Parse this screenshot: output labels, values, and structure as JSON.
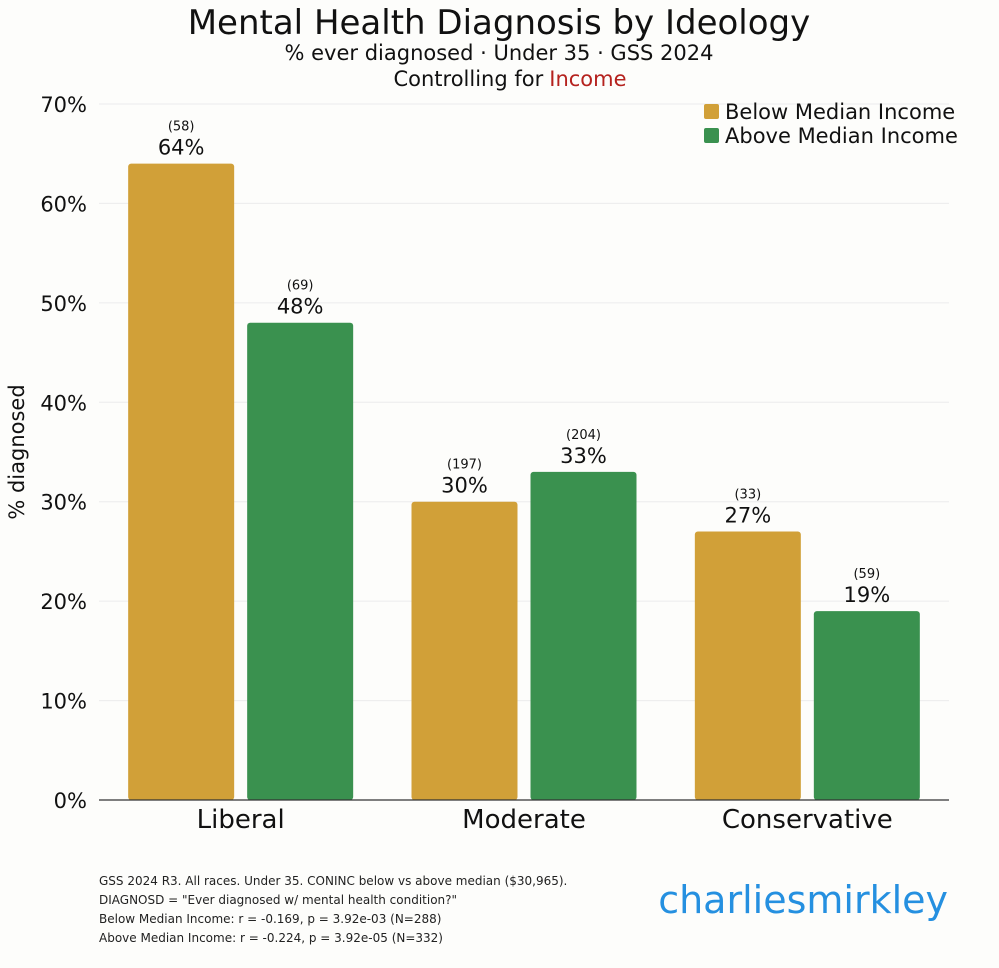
{
  "chart_data": {
    "type": "bar",
    "title": "Mental Health Diagnosis by Ideology",
    "subtitle": "% ever diagnosed · Under 35 · GSS 2024",
    "controlling_prefix": "Controlling for",
    "controlling_variable": "Income",
    "ylabel": "% diagnosed",
    "xlabel": "",
    "ylim": [
      0,
      70
    ],
    "yticks": [
      0,
      10,
      20,
      30,
      40,
      50,
      60,
      70
    ],
    "ytick_suffix": "%",
    "grid": true,
    "legend_position": "top-right",
    "categories": [
      "Liberal",
      "Moderate",
      "Conservative"
    ],
    "series": [
      {
        "name": "Below Median Income",
        "color": "#d1a038",
        "values": [
          64,
          30,
          27
        ],
        "value_labels": [
          "64%",
          "30%",
          "27%"
        ],
        "n_labels": [
          "(58)",
          "(197)",
          "(33)"
        ]
      },
      {
        "name": "Above Median Income",
        "color": "#3a914f",
        "values": [
          48,
          33,
          19
        ],
        "value_labels": [
          "48%",
          "33%",
          "19%"
        ],
        "n_labels": [
          "(69)",
          "(204)",
          "(59)"
        ]
      }
    ]
  },
  "colors": {
    "controlling_variable": "#b5221e",
    "brand": "#2590e0",
    "grid": "#ececec",
    "axis": "#333333"
  },
  "footnotes": [
    "GSS 2024 R3. All races. Under 35. CONINC below vs above median ($30,965).",
    "DIAGNOSD = \"Ever diagnosed w/ mental health condition?\"",
    "Below Median Income: r = -0.169, p = 3.92e-03 (N=288)",
    "Above Median Income: r = -0.224, p = 3.92e-05 (N=332)"
  ],
  "brand": "charliesmirkley"
}
